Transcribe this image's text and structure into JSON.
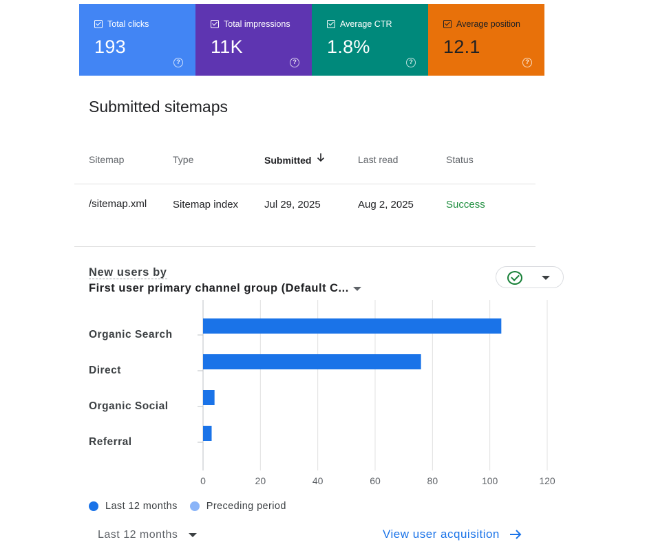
{
  "metrics": [
    {
      "label": "Total clicks",
      "value": "193",
      "color": "#4285f4"
    },
    {
      "label": "Total impressions",
      "value": "11K",
      "color": "#5e35b1"
    },
    {
      "label": "Average CTR",
      "value": "1.8%",
      "color": "#00897b"
    },
    {
      "label": "Average position",
      "value": "12.1",
      "color": "#e8710a"
    }
  ],
  "sitemaps": {
    "title": "Submitted sitemaps",
    "columns": [
      "Sitemap",
      "Type",
      "Submitted",
      "Last read",
      "Status"
    ],
    "sorted_column": "Submitted",
    "rows": [
      {
        "sitemap": "/sitemap.xml",
        "type": "Sitemap index",
        "submitted": "Jul 29, 2025",
        "last_read": "Aug 2, 2025",
        "status": "Success"
      }
    ]
  },
  "new_users": {
    "title": "New users by",
    "dimension": "First user primary channel group (Default C...",
    "legend": [
      {
        "label": "Last 12 months",
        "color": "#1a73e8"
      },
      {
        "label": "Preceding period",
        "color": "#8ab4f8"
      }
    ],
    "period_selector": "Last 12 months",
    "view_link": "View user acquisition"
  },
  "chart_data": {
    "type": "bar",
    "orientation": "horizontal",
    "categories": [
      "Organic Search",
      "Direct",
      "Organic Social",
      "Referral"
    ],
    "series": [
      {
        "name": "Last 12 months",
        "values": [
          104,
          76,
          4,
          3
        ]
      }
    ],
    "xlim": [
      0,
      120
    ],
    "xticks": [
      0,
      20,
      40,
      60,
      80,
      100,
      120
    ],
    "grid": true,
    "legend_position": "bottom-left"
  }
}
